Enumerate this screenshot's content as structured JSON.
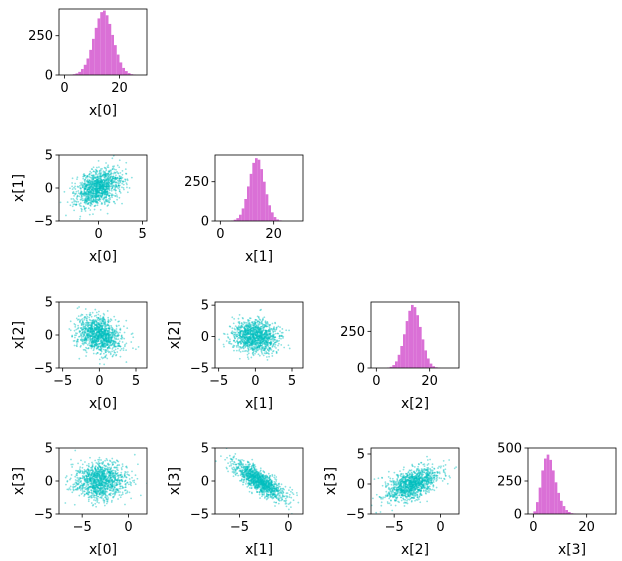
{
  "colors": {
    "hist": "#da70d6",
    "scatter": "#00bfbf"
  },
  "chart_data": [
    {
      "id": "d0",
      "type": "bar",
      "variable": "x[0]",
      "xlabel": "x[0]",
      "ylabel": "",
      "xlim": [
        -2,
        30
      ],
      "ylim": [
        0,
        420
      ],
      "xticks": [
        {
          "v": 0,
          "label": "0"
        },
        {
          "v": 20,
          "label": "20"
        }
      ],
      "yticks": [
        {
          "v": 0,
          "label": "0"
        },
        {
          "v": 250,
          "label": "250"
        }
      ],
      "hist": {
        "start": 2,
        "bin_width": 1,
        "counts": [
          2,
          5,
          10,
          20,
          38,
          65,
          105,
          160,
          230,
          300,
          360,
          400,
          410,
          380,
          325,
          255,
          190,
          130,
          80,
          45,
          25,
          12,
          5,
          2
        ]
      }
    },
    {
      "id": "s10",
      "type": "scatter",
      "xvar": "x[0]",
      "yvar": "x[1]",
      "xlabel": "x[0]",
      "ylabel": "x[1]",
      "xlim": [
        -4.5,
        5.5
      ],
      "ylim": [
        -5,
        5
      ],
      "xticks": [
        {
          "v": 0,
          "label": "0"
        },
        {
          "v": 5,
          "label": "5"
        }
      ],
      "yticks": [
        {
          "v": -5,
          "label": "−5"
        },
        {
          "v": 0,
          "label": "0"
        },
        {
          "v": 5,
          "label": "5"
        }
      ],
      "cloud": {
        "n": 1200,
        "mean": [
          0,
          0
        ],
        "sd": [
          1.3,
          1.4
        ],
        "corr": 0.4
      }
    },
    {
      "id": "d1",
      "type": "bar",
      "variable": "x[1]",
      "xlabel": "x[1]",
      "ylabel": "",
      "xlim": [
        -2,
        31
      ],
      "ylim": [
        0,
        420
      ],
      "xticks": [
        {
          "v": 0,
          "label": "0"
        },
        {
          "v": 20,
          "label": "20"
        }
      ],
      "yticks": [
        {
          "v": 0,
          "label": "0"
        },
        {
          "v": 250,
          "label": "250"
        }
      ],
      "hist": {
        "start": 4,
        "bin_width": 1,
        "counts": [
          3,
          8,
          18,
          40,
          80,
          140,
          220,
          300,
          370,
          400,
          390,
          330,
          250,
          170,
          100,
          55,
          25,
          10,
          4
        ]
      }
    },
    {
      "id": "s20",
      "type": "scatter",
      "xvar": "x[0]",
      "yvar": "x[2]",
      "xlabel": "x[0]",
      "ylabel": "x[2]",
      "xlim": [
        -5.5,
        6.5
      ],
      "ylim": [
        -5,
        5
      ],
      "xticks": [
        {
          "v": -5,
          "label": "−5"
        },
        {
          "v": 0,
          "label": "0"
        },
        {
          "v": 5,
          "label": "5"
        }
      ],
      "yticks": [
        {
          "v": -5,
          "label": "−5"
        },
        {
          "v": 0,
          "label": "0"
        },
        {
          "v": 5,
          "label": "5"
        }
      ],
      "cloud": {
        "n": 1200,
        "mean": [
          0,
          0
        ],
        "sd": [
          1.5,
          1.4
        ],
        "corr": -0.25
      }
    },
    {
      "id": "s21",
      "type": "scatter",
      "xvar": "x[1]",
      "yvar": "x[2]",
      "xlabel": "x[1]",
      "ylabel": "x[2]",
      "xlim": [
        -5.5,
        6.5
      ],
      "ylim": [
        -5,
        5.5
      ],
      "xticks": [
        {
          "v": -5,
          "label": "−5"
        },
        {
          "v": 0,
          "label": "0"
        },
        {
          "v": 5,
          "label": "5"
        }
      ],
      "yticks": [
        {
          "v": -5,
          "label": "−5"
        },
        {
          "v": 0,
          "label": "0"
        },
        {
          "v": 5,
          "label": "5"
        }
      ],
      "cloud": {
        "n": 1200,
        "mean": [
          0,
          0
        ],
        "sd": [
          1.6,
          1.3
        ],
        "corr": -0.1
      }
    },
    {
      "id": "d2",
      "type": "bar",
      "variable": "x[2]",
      "xlabel": "x[2]",
      "ylabel": "",
      "xlim": [
        -2,
        31
      ],
      "ylim": [
        0,
        450
      ],
      "xticks": [
        {
          "v": 0,
          "label": "0"
        },
        {
          "v": 20,
          "label": "20"
        }
      ],
      "yticks": [
        {
          "v": 0,
          "label": "0"
        },
        {
          "v": 250,
          "label": "250"
        }
      ],
      "hist": {
        "start": 4,
        "bin_width": 1,
        "counts": [
          3,
          8,
          20,
          45,
          90,
          150,
          230,
          320,
          390,
          430,
          415,
          360,
          280,
          195,
          120,
          65,
          30,
          12,
          5,
          2
        ]
      }
    },
    {
      "id": "s30",
      "type": "scatter",
      "xvar": "x[0]",
      "yvar": "x[3]",
      "xlabel": "x[0]",
      "ylabel": "x[3]",
      "xlim": [
        -7.5,
        2
      ],
      "ylim": [
        -5,
        5
      ],
      "xticks": [
        {
          "v": -5,
          "label": "−5"
        },
        {
          "v": 0,
          "label": "0"
        }
      ],
      "yticks": [
        {
          "v": -5,
          "label": "−5"
        },
        {
          "v": 0,
          "label": "0"
        },
        {
          "v": 5,
          "label": "5"
        }
      ],
      "cloud": {
        "n": 1200,
        "mean": [
          -3,
          0
        ],
        "sd": [
          1.4,
          1.4
        ],
        "corr": 0.05
      }
    },
    {
      "id": "s31",
      "type": "scatter",
      "xvar": "x[1]",
      "yvar": "x[3]",
      "xlabel": "x[1]",
      "ylabel": "x[3]",
      "xlim": [
        -7.5,
        1.5
      ],
      "ylim": [
        -5,
        5
      ],
      "xticks": [
        {
          "v": -5,
          "label": "−5"
        },
        {
          "v": 0,
          "label": "0"
        }
      ],
      "yticks": [
        {
          "v": -5,
          "label": "−5"
        },
        {
          "v": 0,
          "label": "0"
        },
        {
          "v": 5,
          "label": "5"
        }
      ],
      "cloud": {
        "n": 1200,
        "mean": [
          -3,
          0
        ],
        "sd": [
          1.3,
          1.4
        ],
        "corr": -0.8
      }
    },
    {
      "id": "s32",
      "type": "scatter",
      "xvar": "x[2]",
      "yvar": "x[3]",
      "xlabel": "x[2]",
      "ylabel": "x[3]",
      "xlim": [
        -7.5,
        2
      ],
      "ylim": [
        -5,
        6
      ],
      "xticks": [
        {
          "v": -5,
          "label": "−5"
        },
        {
          "v": 0,
          "label": "0"
        }
      ],
      "yticks": [
        {
          "v": -5,
          "label": "−5"
        },
        {
          "v": 0,
          "label": "0"
        },
        {
          "v": 5,
          "label": "5"
        }
      ],
      "cloud": {
        "n": 1200,
        "mean": [
          -3,
          0
        ],
        "sd": [
          1.4,
          1.4
        ],
        "corr": 0.55
      }
    },
    {
      "id": "d3",
      "type": "bar",
      "variable": "x[3]",
      "xlabel": "x[3]",
      "ylabel": "",
      "xlim": [
        -2,
        31
      ],
      "ylim": [
        0,
        500
      ],
      "xticks": [
        {
          "v": 0,
          "label": "0"
        },
        {
          "v": 20,
          "label": "20"
        }
      ],
      "yticks": [
        {
          "v": 0,
          "label": "0"
        },
        {
          "v": 250,
          "label": "250"
        },
        {
          "v": 500,
          "label": "500"
        }
      ],
      "hist": {
        "start": 0,
        "bin_width": 1,
        "counts": [
          20,
          90,
          200,
          330,
          420,
          450,
          410,
          330,
          240,
          160,
          100,
          60,
          30,
          15,
          6,
          3,
          1
        ]
      }
    }
  ]
}
